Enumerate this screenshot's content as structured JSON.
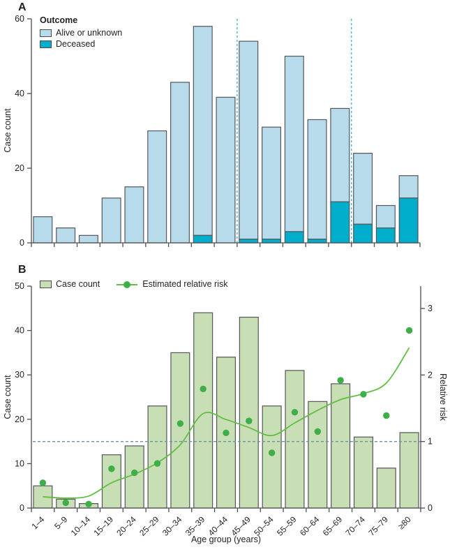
{
  "panel_a": {
    "label": "A",
    "ylabel": "Case count",
    "legend_title": "Outcome",
    "legend": [
      {
        "label": "Alive or unknown",
        "color": "#b7dbeb"
      },
      {
        "label": "Deceased",
        "color": "#00aecb"
      }
    ]
  },
  "panel_b": {
    "label": "B",
    "ylabel_left": "Case count",
    "ylabel_right": "Relative risk",
    "xlabel": "Age group (years)",
    "legend": [
      {
        "label": "Case count",
        "color": "#c8deb4"
      },
      {
        "label": "Estimated relative risk",
        "color": "#3fae49"
      }
    ]
  },
  "chart_data": [
    {
      "panel": "A",
      "type": "bar",
      "stacked": true,
      "categories": [
        "1–4",
        "5–9",
        "10–14",
        "15–19",
        "20–24",
        "25–29",
        "30–34",
        "35–39",
        "40–44",
        "45–49",
        "50–54",
        "55–59",
        "60–64",
        "65–69",
        "70–74",
        "75–79",
        "≥80"
      ],
      "series": [
        {
          "name": "Alive or unknown",
          "color": "#b7dbeb",
          "values": [
            7,
            4,
            2,
            12,
            15,
            30,
            43,
            56,
            39,
            53,
            30,
            47,
            32,
            25,
            19,
            6,
            6
          ]
        },
        {
          "name": "Deceased",
          "color": "#00aecb",
          "values": [
            0,
            0,
            0,
            0,
            0,
            0,
            0,
            2,
            0,
            1,
            1,
            3,
            1,
            11,
            5,
            4,
            12
          ]
        }
      ],
      "bar_totals": [
        7,
        4,
        2,
        12,
        15,
        30,
        43,
        58,
        39,
        54,
        31,
        50,
        33,
        36,
        24,
        10,
        18
      ],
      "ylabel": "Case count",
      "ylim": [
        0,
        60
      ],
      "yticks": [
        0,
        20,
        40,
        60
      ],
      "grid": false,
      "legend_position": "top-left",
      "dashed_vlines_between": [
        [
          "40–44",
          "45–49"
        ],
        [
          "65–69",
          "70–74"
        ]
      ],
      "dashed_vline_color": "#3fb5e6"
    },
    {
      "panel": "B",
      "type": "bar+line+scatter",
      "categories": [
        "1–4",
        "5–9",
        "10–14",
        "15–19",
        "20–24",
        "25–29",
        "30–34",
        "35–39",
        "40–44",
        "45–49",
        "50–54",
        "55–59",
        "60–64",
        "65–69",
        "70–74",
        "75–79",
        "≥80"
      ],
      "bars": {
        "name": "Case count",
        "color": "#c8deb4",
        "axis": "left",
        "values": [
          5,
          2,
          1,
          12,
          14,
          23,
          35,
          44,
          34,
          43,
          23,
          31,
          24,
          28,
          16,
          9,
          17
        ]
      },
      "points": {
        "name": "Estimated relative risk",
        "color": "#3fae49",
        "axis": "right",
        "values": [
          0.38,
          0.08,
          0.06,
          0.59,
          0.53,
          0.67,
          1.27,
          1.79,
          1.13,
          1.31,
          0.83,
          1.44,
          1.15,
          1.92,
          1.71,
          1.39,
          2.67
        ]
      },
      "line": {
        "name": "Estimated relative risk (trend)",
        "color": "#63bd46",
        "axis": "right",
        "values": [
          0.17,
          0.15,
          0.18,
          0.38,
          0.51,
          0.68,
          0.95,
          1.42,
          1.33,
          1.21,
          1.09,
          1.28,
          1.47,
          1.63,
          1.72,
          1.88,
          2.41
        ]
      },
      "ylabel_left": "Case count",
      "ylim_left": [
        0,
        50
      ],
      "yticks_left": [
        0,
        10,
        20,
        30,
        40,
        50
      ],
      "ylabel_right": "Relative risk",
      "ylim_right": [
        0,
        3
      ],
      "yticks_right": [
        0,
        1,
        2,
        3
      ],
      "xlabel": "Age group (years)",
      "grid": false,
      "legend_position": "top-left",
      "reference_hline": {
        "right_axis_value": 1,
        "color": "#6b95a3"
      }
    }
  ]
}
